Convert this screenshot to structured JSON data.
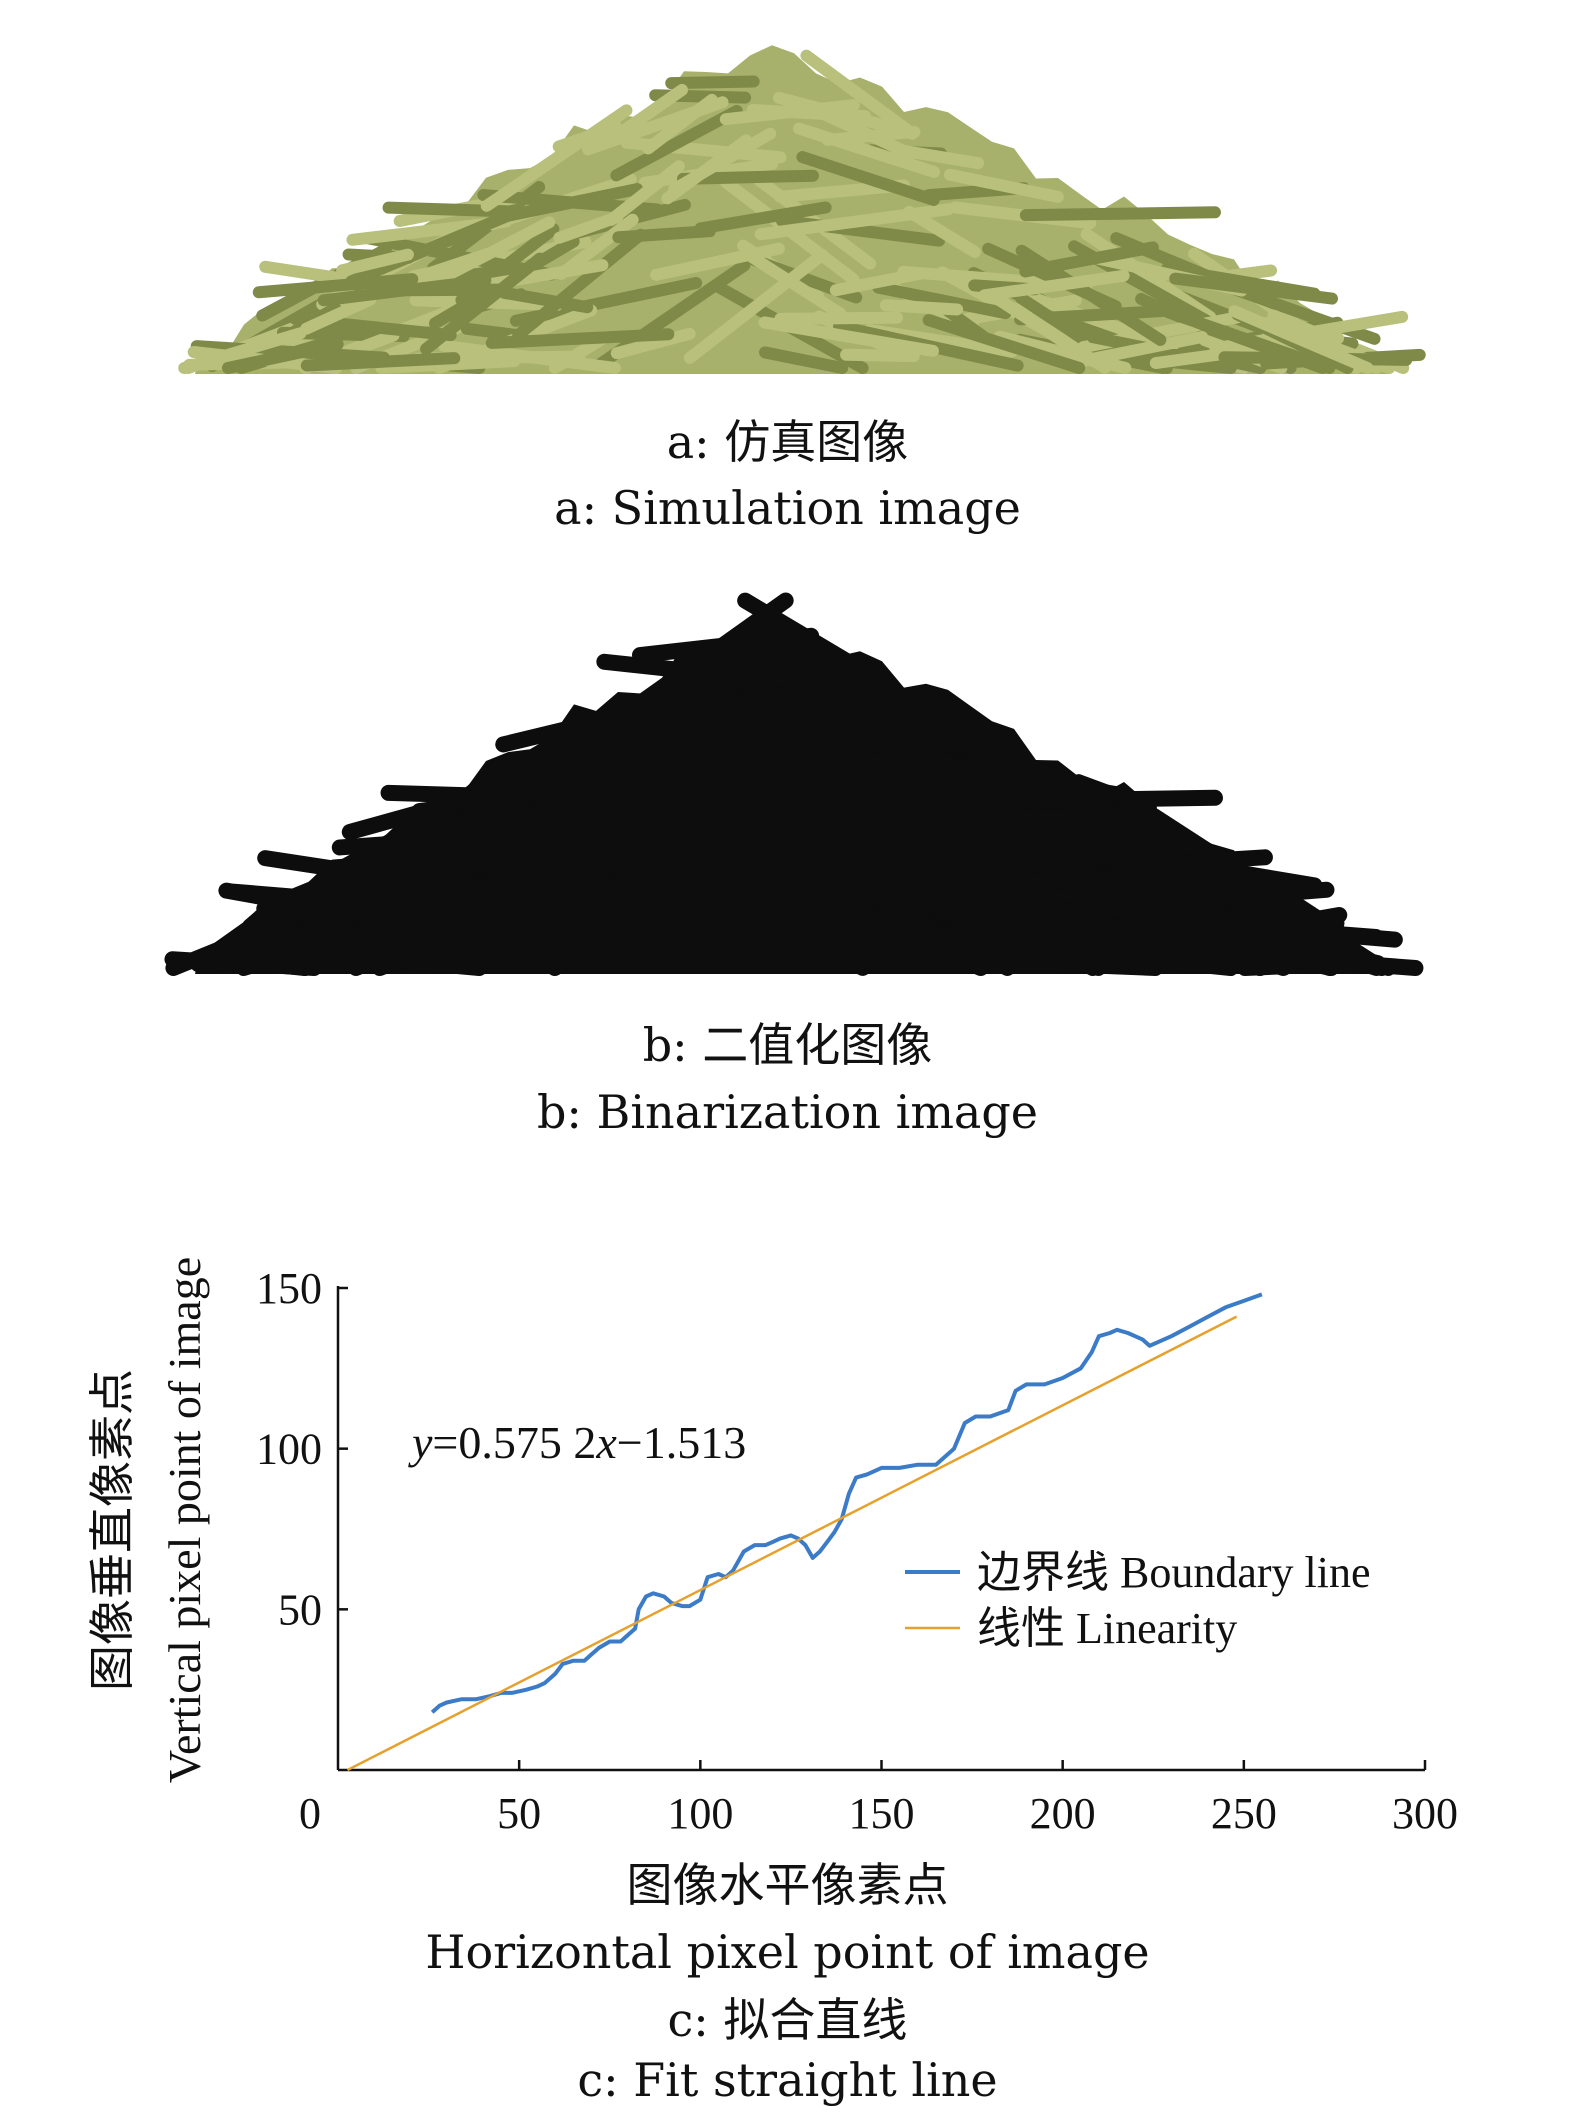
{
  "panels": {
    "a": {
      "caption_cn": "a: 仿真图像",
      "caption_en": "a: Simulation image",
      "color": "#a8b16b",
      "edge": "#7f8a48"
    },
    "b": {
      "caption_cn": "b: 二值化图像",
      "caption_en": "b: Binarization image",
      "color": "#0d0d0d"
    },
    "c": {
      "caption_cn": "c: 拟合直线",
      "caption_en": "c: Fit straight line"
    }
  },
  "chart_data": {
    "type": "line",
    "xlabel_cn": "图像水平像素点",
    "xlabel_en": "Horizontal pixel point of image",
    "ylabel_cn": "图像垂直像素点",
    "ylabel_en": "Vertical pixel point of image",
    "xlim": [
      0,
      300
    ],
    "ylim": [
      0,
      150
    ],
    "xticks": [
      0,
      50,
      100,
      150,
      200,
      250,
      300
    ],
    "yticks": [
      50,
      100,
      150
    ],
    "annotation_y": "y",
    "annotation_rest": "=0.575 2",
    "annotation_x": "x",
    "annotation_tail": "−1.513",
    "legend_position": "right",
    "series": [
      {
        "name": "边界线 Boundary line",
        "color": "#3b7bc7",
        "x": [
          26,
          28,
          30,
          34,
          38,
          42,
          45,
          48,
          52,
          55,
          57,
          60,
          62,
          65,
          68,
          70,
          72,
          75,
          78,
          80,
          82,
          83,
          85,
          87,
          90,
          92,
          95,
          97,
          100,
          102,
          105,
          107,
          109,
          112,
          115,
          118,
          120,
          122,
          125,
          127,
          129,
          131,
          133,
          135,
          137,
          139,
          141,
          143,
          146,
          150,
          155,
          160,
          165,
          170,
          173,
          176,
          180,
          185,
          187,
          190,
          195,
          200,
          205,
          208,
          210,
          213,
          215,
          218,
          220,
          222,
          224,
          230,
          235,
          240,
          245,
          250,
          255
        ],
        "y": [
          18,
          20,
          21,
          22,
          22,
          23,
          24,
          24,
          25,
          26,
          27,
          30,
          33,
          34,
          34,
          36,
          38,
          40,
          40,
          42,
          44,
          50,
          54,
          55,
          54,
          52,
          51,
          51,
          53,
          60,
          61,
          60,
          62,
          68,
          70,
          70,
          71,
          72,
          73,
          72,
          70,
          66,
          68,
          71,
          74,
          78,
          86,
          91,
          92,
          94,
          94,
          95,
          95,
          100,
          108,
          110,
          110,
          112,
          118,
          120,
          120,
          122,
          125,
          130,
          135,
          136,
          137,
          136,
          135,
          134,
          132,
          135,
          138,
          141,
          144,
          146,
          148
        ]
      },
      {
        "name": "线性 Linearity",
        "color": "#e6a12d",
        "x": [
          2.63,
          248
        ],
        "y": [
          0,
          141.1
        ]
      }
    ]
  }
}
